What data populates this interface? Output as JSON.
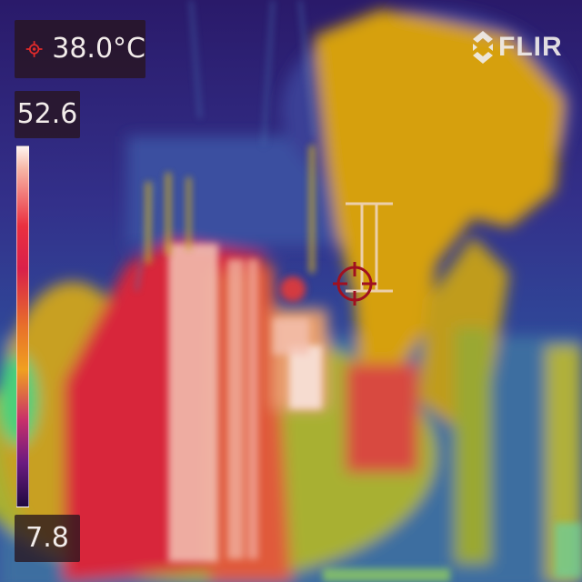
{
  "spot_meter": {
    "value": "38.0°C",
    "icon": "spot-meter-icon"
  },
  "temperature_scale": {
    "max": "52.6",
    "min": "7.8"
  },
  "brand": {
    "name": "FLIR",
    "icon": "flir-logo-icon"
  },
  "palette": {
    "name": "iron",
    "colors": [
      "#fff4f0",
      "#ea3040",
      "#e8702a",
      "#f0a020",
      "#6a1a80",
      "#200a40"
    ]
  }
}
